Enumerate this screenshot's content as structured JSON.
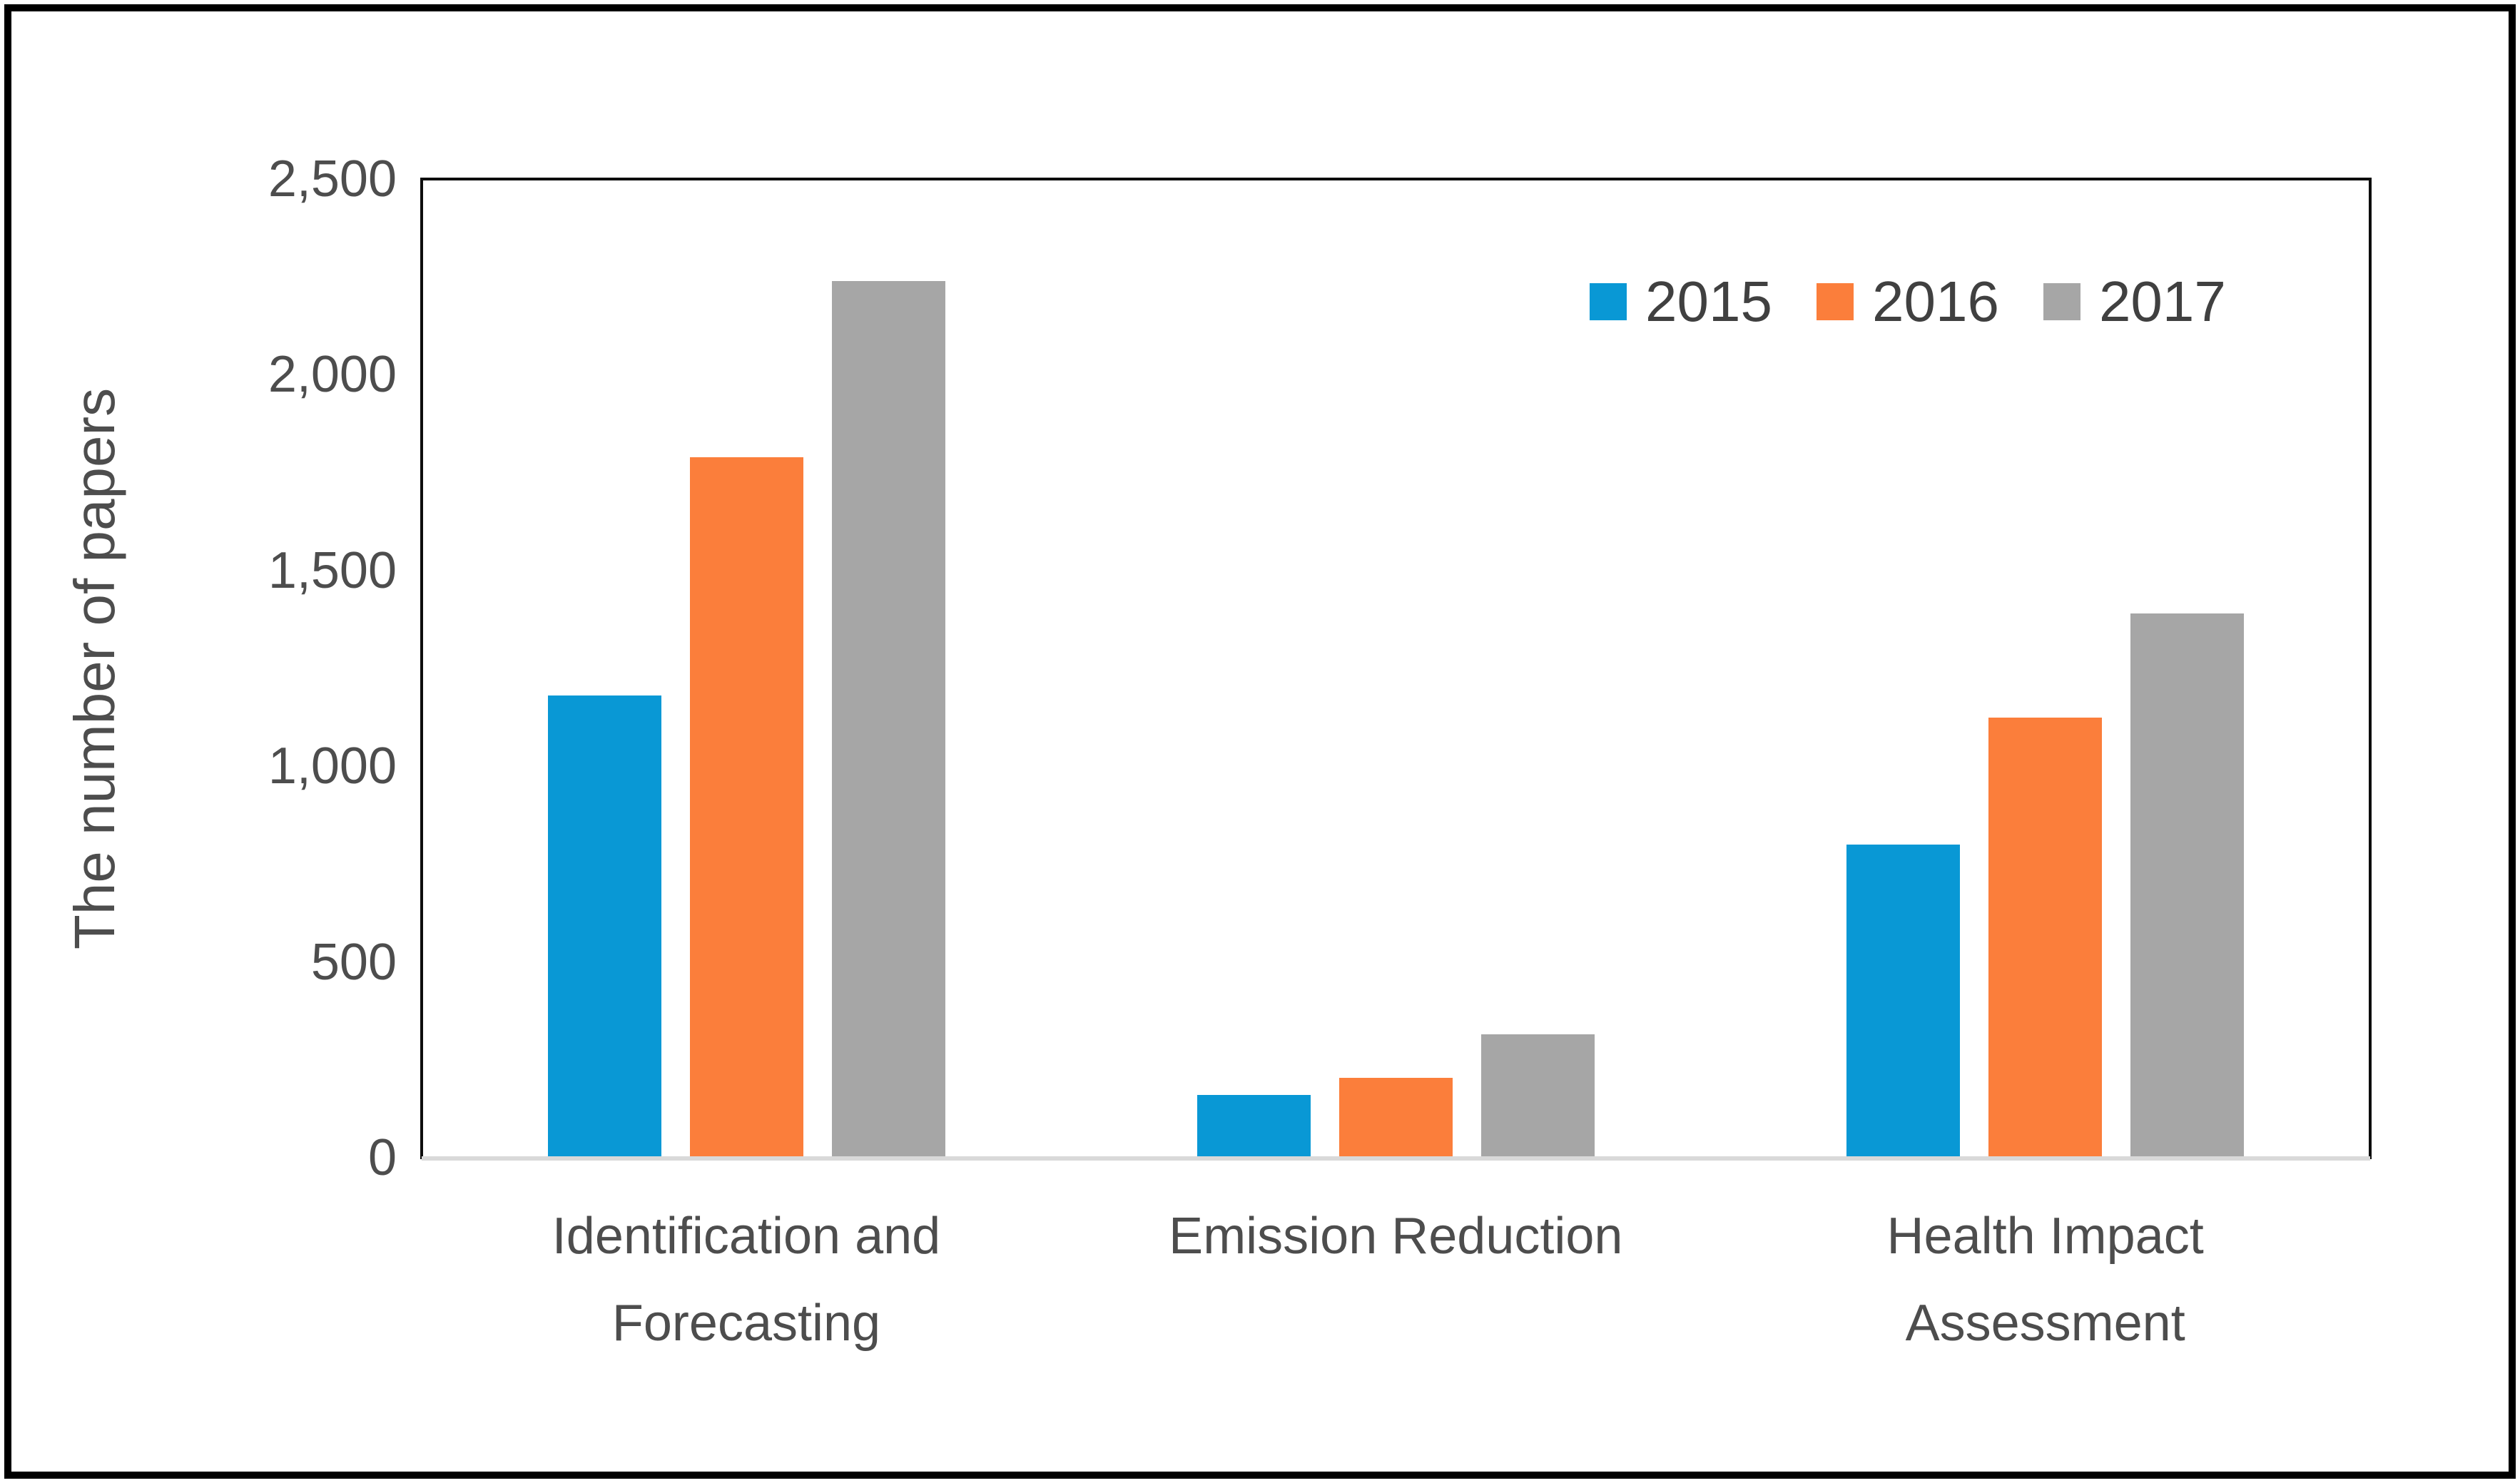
{
  "figure": {
    "background": "#ffffff",
    "border_color": "#000000",
    "frame_color": "#0d0d0d",
    "axis_line_color": "#d9d9d9",
    "text_color": "#4d4d4d"
  },
  "chart_data": {
    "type": "bar",
    "title": "",
    "xlabel": "",
    "ylabel": "The number of papers",
    "categories": [
      "Identification and Forecasting",
      "Emission Reduction",
      "Health Impact Assessment"
    ],
    "category_lines": [
      [
        "Identification and",
        "Forecasting"
      ],
      [
        "Emission Reduction"
      ],
      [
        "Health Impact",
        "Assessment"
      ]
    ],
    "series": [
      {
        "name": "2015",
        "color": "#0998d5",
        "values": [
          1180,
          160,
          800
        ]
      },
      {
        "name": "2016",
        "color": "#fb7e3b",
        "values": [
          1790,
          205,
          1125
        ]
      },
      {
        "name": "2017",
        "color": "#a6a6a6",
        "values": [
          2240,
          315,
          1390
        ]
      }
    ],
    "ylim": [
      0,
      2500
    ],
    "yticks": [
      {
        "value": 0,
        "label": "0"
      },
      {
        "value": 500,
        "label": "500"
      },
      {
        "value": 1000,
        "label": "1,000"
      },
      {
        "value": 1500,
        "label": "1,500"
      },
      {
        "value": 2000,
        "label": "2,000"
      },
      {
        "value": 2500,
        "label": "2,500"
      }
    ],
    "legend_position": "top-right",
    "legend_labels": [
      "2015",
      "2016",
      "2017"
    ],
    "grid": false
  }
}
